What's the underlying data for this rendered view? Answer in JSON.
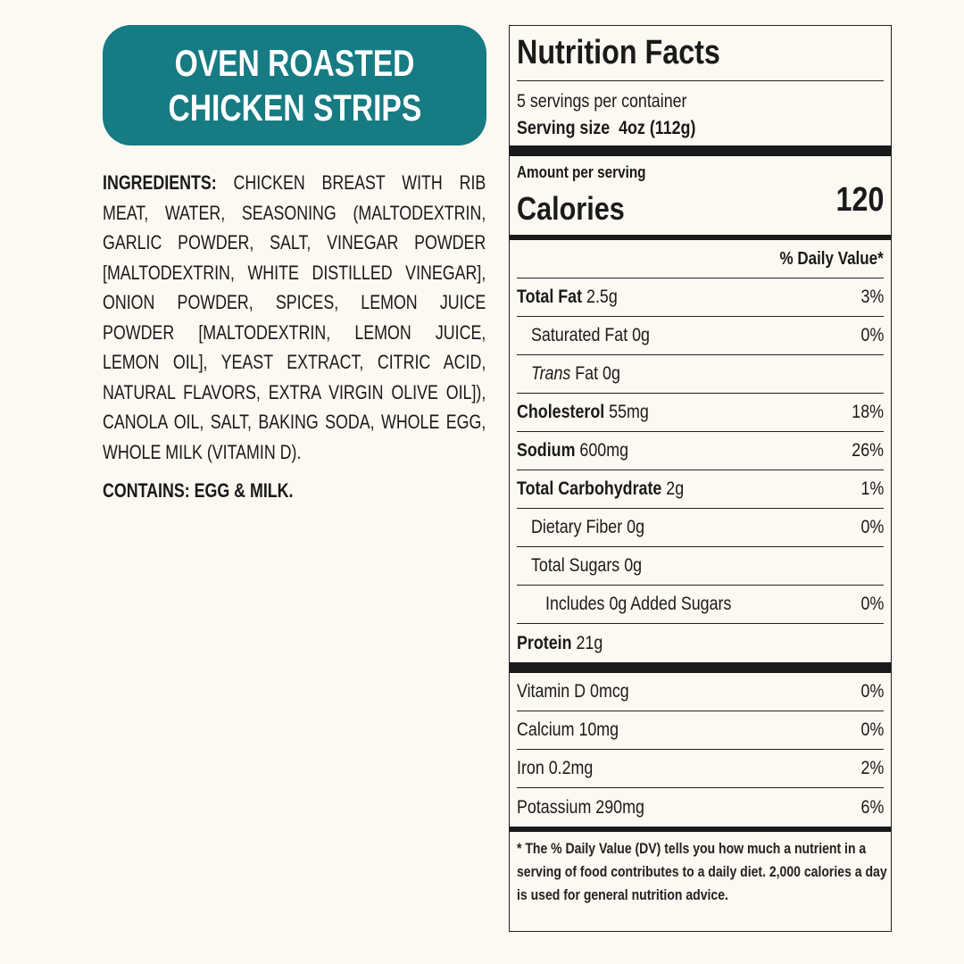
{
  "title": [
    "OVEN ROASTED",
    "CHICKEN STRIPS"
  ],
  "ingredients": {
    "label": "INGREDIENTS:",
    "text": "CHICKEN BREAST WITH RIB MEAT, WATER, SEASONING (MALTODEXTRIN, GARLIC POWDER, SALT, VINEGAR POWDER [MALTODEXTRIN, WHITE DISTILLED VINEGAR], ONION POWDER, SPICES, LEMON JUICE POWDER [MALTODEXTRIN, LEMON JUICE, LEMON OIL], YEAST EXTRACT, CITRIC ACID, NATURAL FLAVORS, EXTRA VIRGIN OLIVE OIL]), CANOLA OIL, SALT, BAKING SODA, WHOLE EGG, WHOLE MILK (VITAMIN D)."
  },
  "contains": "CONTAINS: EGG & MILK.",
  "nutrition": {
    "heading": "Nutrition Facts",
    "servings": "5 servings per container",
    "serving_size_label": "Serving size",
    "serving_size": "4oz (112g)",
    "amount_per_serving": "Amount per serving",
    "calories_label": "Calories",
    "calories": 120,
    "dv_header": "% Daily Value*",
    "nutrients": [
      {
        "name": "Total Fat",
        "amount": "2.5g",
        "dv": "3%",
        "bold": true
      },
      {
        "name": "Saturated Fat",
        "amount": "0g",
        "dv": "0%",
        "indent": 1
      },
      {
        "name": "Trans",
        "amount": "Fat 0g",
        "indent": 1,
        "italic": true
      },
      {
        "name": "Cholesterol",
        "amount": "55mg",
        "dv": "18%",
        "bold": true
      },
      {
        "name": "Sodium",
        "amount": "600mg",
        "dv": "26%",
        "bold": true
      },
      {
        "name": "Total Carbohydrate",
        "amount": "2g",
        "dv": "1%",
        "bold": true
      },
      {
        "name": "Dietary Fiber",
        "amount": "0g",
        "dv": "0%",
        "indent": 1
      },
      {
        "name": "Total Sugars",
        "amount": "0g",
        "indent": 1
      },
      {
        "name": "Includes 0g Added Sugars",
        "dv": "0%",
        "indent": 2
      },
      {
        "name": "Protein",
        "amount": "21g",
        "bold": true
      }
    ],
    "vitamins": [
      {
        "name": "Vitamin D",
        "amount": "0mcg",
        "dv": "0%"
      },
      {
        "name": "Calcium",
        "amount": "10mg",
        "dv": "0%"
      },
      {
        "name": "Iron",
        "amount": "0.2mg",
        "dv": "2%"
      },
      {
        "name": "Potassium",
        "amount": "290mg",
        "dv": "6%"
      }
    ],
    "footnote": "* The % Daily Value (DV) tells you how much a nutrient in a serving of food contributes to a daily diet. 2,000 calories a day is used for general nutrition advice."
  }
}
